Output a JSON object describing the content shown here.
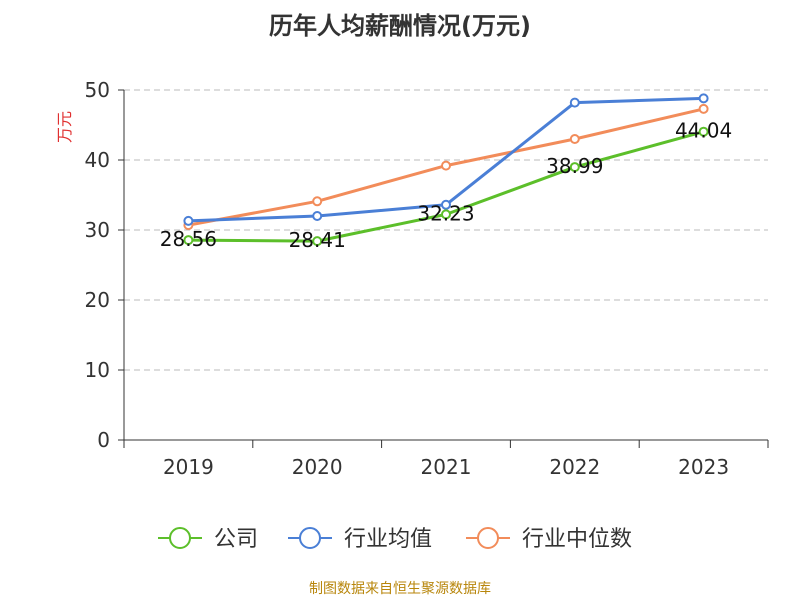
{
  "title": "历年人均薪酬情况(万元)",
  "footer": "制图数据来自恒生聚源数据库",
  "chart_data": {
    "type": "line",
    "title": "历年人均薪酬情况(万元)",
    "ylabel": "万元",
    "xlabel": "",
    "categories": [
      "2019",
      "2020",
      "2021",
      "2022",
      "2023"
    ],
    "ylim": [
      0,
      50
    ],
    "yticks": [
      0,
      10,
      20,
      30,
      40,
      50
    ],
    "grid": true,
    "legend_position": "bottom",
    "series": [
      {
        "name": "公司",
        "color": "#5cbf2a",
        "values": [
          28.56,
          28.41,
          32.23,
          38.99,
          44.04
        ],
        "labels": [
          "28.56",
          "28.41",
          "32.23",
          "38.99",
          "44.04"
        ]
      },
      {
        "name": "行业均值",
        "color": "#4a7fd6",
        "values": [
          31.3,
          32.0,
          33.6,
          48.2,
          48.8
        ]
      },
      {
        "name": "行业中位数",
        "color": "#f28c5a",
        "values": [
          30.7,
          34.1,
          39.2,
          43.0,
          47.3
        ]
      }
    ]
  }
}
